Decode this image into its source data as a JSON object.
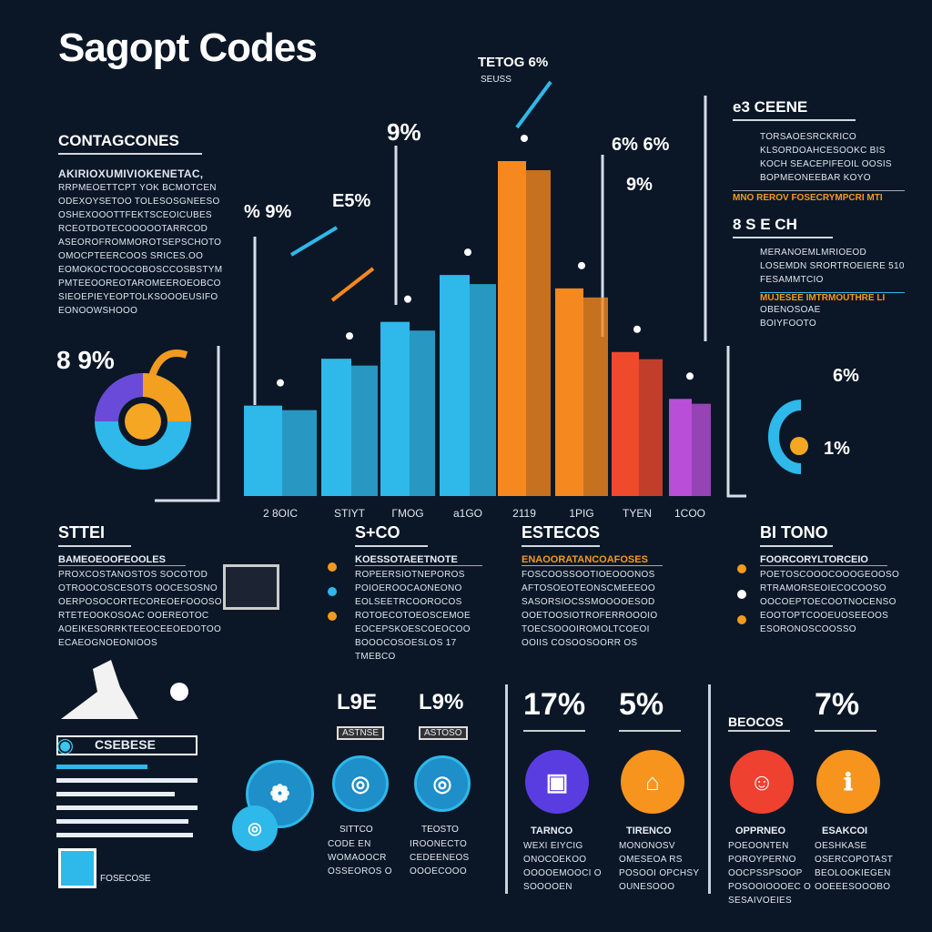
{
  "header": {
    "title": "Sagopt Codes"
  },
  "left_panel": {
    "heading": "CONTAGCONES",
    "lead": "AKIRIOXUMIVIOKENETAC,",
    "lines": [
      "RRPMEOETTCPT YOK BCMOTCEN",
      "ODEXOYSETOO TOLESOSGNEESO",
      "OSHEXOOOTTFEKTSCEOICUBES",
      "RCEOTDOTECOOOOOTARRCOD",
      "ASEOROFROMMOROTSEPSCHOTO",
      "OMOCPTEERCOOS SRICES.OO",
      "EOMOKOCTOOCOBOSCCOSBSTYM",
      "PMTEEOOREOTAROMEEROEOBCO",
      "SIEOEPIEYEOPTOLKSOOOEUSIFO",
      "EONOOWSHOOO"
    ]
  },
  "chart_annotations": {
    "top_label": "TETOG 6%",
    "top_sub": "SEUSS",
    "ann_left": "% 9%",
    "ann_mid": "E5%",
    "ann_tall": "9%",
    "ann_right": "6% 6%",
    "ann_right_sub": "9%"
  },
  "chart_data": {
    "type": "bar",
    "categories": [
      "2 8OIC",
      "STIYT",
      "ΓMOG",
      "a1GO",
      "2119",
      "1PIG",
      "TYEN",
      "1COO"
    ],
    "values": [
      27,
      41,
      52,
      66,
      100,
      62,
      43,
      29
    ],
    "colors": [
      "#2fb8ea",
      "#2fb8ea",
      "#2fb8ea",
      "#2fb8ea",
      "#f5881e",
      "#f5881e",
      "#ef4a2c",
      "#b94fd8"
    ],
    "title": "",
    "xlabel": "",
    "ylabel": "",
    "grid": false
  },
  "donut": {
    "label": "8 9%",
    "segments": [
      {
        "color": "#f3a020",
        "value": 30
      },
      {
        "color": "#2fb8ea",
        "value": 40
      },
      {
        "color": "#6a4ad8",
        "value": 30
      }
    ],
    "center_color": "#f5a623"
  },
  "right_donut": {
    "label_top": "6%",
    "label_bottom": "1%"
  },
  "right_panel": {
    "section1": {
      "heading": "e3 CEENE",
      "lines": [
        "TORSAOESRCKRICO",
        "KLSORDOAHCESOOKC BIS",
        "KOCH SEACEPIFEOIL OOSIS",
        "BOPMEONEEBAR KOYO"
      ],
      "highlight": "MNO REROV FOSECRYMPCRI MTI"
    },
    "section2": {
      "heading": "8 S E CH",
      "lines": [
        "MERANOEMLMRIOEOD",
        "LOSEMDN SRORTROEIERE 510",
        "FESAMMTCIO"
      ],
      "highlight": "MUJESEE IMTRMOUTHRE LI",
      "lines2": [
        "OBENOSOAE",
        "BOIYFOOTO"
      ]
    }
  },
  "sections": [
    {
      "heading": "STTEI",
      "lead": "BAMEOEOOFEOOLES",
      "lines": [
        "PROXCOSTANOSTOS SOCOTOD",
        "OTROOCOSCESOTS OOCESOSNO",
        "OERPOSOCORTECOREOEFOOOSO",
        "RTETEOOKOSOAC OOEREOTOC",
        "AOEIKESORRKTEEOCEEOEDOTOO",
        "ECAEOGNOEONIOOS"
      ]
    },
    {
      "heading": "S+CO",
      "lead": "KOESSOTAEETNOTE",
      "lines": [
        "ROPEERSIOTNEPOROS",
        "POIOEROOCAONEONO",
        "EOLSEETRCOOROCOS",
        "ROTOECOTOEOSCEMOE",
        "EOCEPSKOESCOEOCOO",
        "BOOOCOSOESLOS 17",
        "TMEBCO"
      ]
    },
    {
      "heading": "ESTECOS",
      "lead": "ENAOORATANCOAFOSES",
      "lines": [
        "FOSCOOSSOOTIOEOOONOS",
        "AFTOSOEOTEONSCMEEEOO",
        "SASORSIOCSSMOOOOESOD",
        "OOETOOSIOTROFERROOOIO",
        "TOECSOOOIROMOLTCOEOI",
        "OOIIS COSOOSOORR OS"
      ]
    },
    {
      "heading": "BI TONO",
      "lead": "FOORCORYLTORCEIO",
      "lines": [
        "POETOSCOOOCOOOGEOOSO",
        "RTRAMORSEOIECOCOOSO",
        "OOCOEPTOECOOTNOCENSO",
        "EOOTOPTCOOEUOSEEOOS",
        "ESORONOSCOOSSO"
      ]
    }
  ],
  "stats": [
    {
      "value": "17%",
      "color": "#5a3de0",
      "icon": "document-icon",
      "title": "TARNCO",
      "lines": [
        "WEXI EIYCIG",
        "ONOCOEKOO",
        "OOOOEMOOCI O",
        "SOOOOEN"
      ]
    },
    {
      "value": "5%",
      "color": "#f7941d",
      "icon": "printer-icon",
      "title": "TIRENCO",
      "lines": [
        "MONONOSV",
        "OMESEOA RS",
        "POSOOI OPCHSY",
        "OUNESOOO"
      ]
    },
    {
      "value": "BEOCOS",
      "color": "#ef4130",
      "icon": "person-icon",
      "title": "OPPRNEO",
      "lines": [
        "POEOONTEN",
        "POROYPERNO",
        "OOCPSSPSOOP",
        "POSOOIOOOEC O",
        "SESAIVOEIES"
      ]
    },
    {
      "value": "7%",
      "color": "#f7941d",
      "icon": "info-icon",
      "title": "ESAKCOI",
      "lines": [
        "OESHKASE",
        "OSERCOPOTAST",
        "BEOLOOKIEGEN",
        "OOEEESOOOBO"
      ]
    }
  ],
  "mid_stats": [
    {
      "value": "L9E",
      "tag": "ASTNSE",
      "icon": "gear-icon",
      "title": "SITTCO",
      "lines": [
        "CODE EN",
        "WOMAOOCR",
        "OSSEOROS O"
      ]
    },
    {
      "value": "L9%",
      "tag": "ASTOSO",
      "icon": "tablet-icon",
      "title": "TEOSTO",
      "lines": [
        "IROONECTO",
        "CEDEENEOS",
        "OOOECOOO"
      ]
    }
  ],
  "left_bottom": {
    "label": "CSEBESE",
    "footer": "FOSECOSE"
  }
}
